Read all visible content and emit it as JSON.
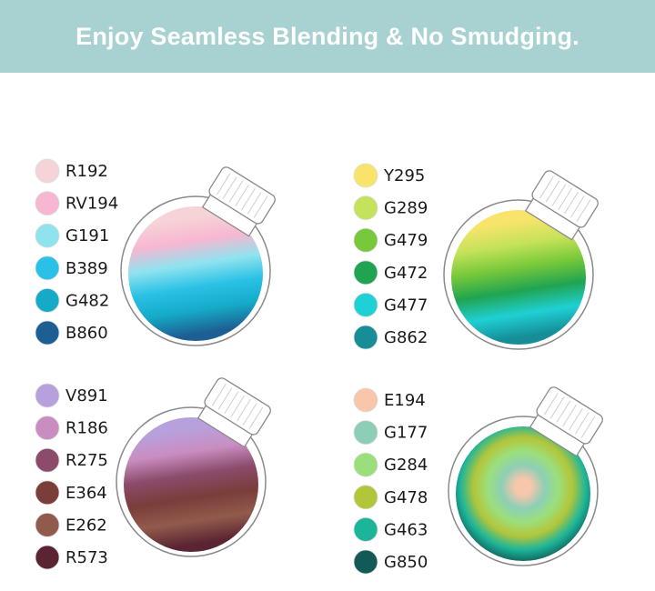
{
  "header": {
    "title": "Enjoy Seamless Blending & No Smudging."
  },
  "panels": [
    {
      "swatches": [
        {
          "code": "R192",
          "color": "#f6d3d6"
        },
        {
          "code": "RV194",
          "color": "#f7b7d2"
        },
        {
          "code": "G191",
          "color": "#8fe3ef"
        },
        {
          "code": "B389",
          "color": "#2bc1e6"
        },
        {
          "code": "G482",
          "color": "#15aac7"
        },
        {
          "code": "B860",
          "color": "#1d5f93"
        }
      ]
    },
    {
      "swatches": [
        {
          "code": "Y295",
          "color": "#f8e46a"
        },
        {
          "code": "G289",
          "color": "#c4e25a"
        },
        {
          "code": "G479",
          "color": "#77c83a"
        },
        {
          "code": "G472",
          "color": "#20a451"
        },
        {
          "code": "G477",
          "color": "#1fd0d4"
        },
        {
          "code": "G862",
          "color": "#168d97"
        }
      ]
    },
    {
      "swatches": [
        {
          "code": "V891",
          "color": "#b7a1dd"
        },
        {
          "code": "R186",
          "color": "#c98dc0"
        },
        {
          "code": "R275",
          "color": "#8c4b6b"
        },
        {
          "code": "E364",
          "color": "#7a3d3a"
        },
        {
          "code": "E262",
          "color": "#925a4c"
        },
        {
          "code": "R573",
          "color": "#5a2432"
        }
      ]
    },
    {
      "swatches": [
        {
          "code": "E194",
          "color": "#f8c6ab"
        },
        {
          "code": "G177",
          "color": "#8dcfb6"
        },
        {
          "code": "G284",
          "color": "#9bdf7c"
        },
        {
          "code": "G478",
          "color": "#b3c63a"
        },
        {
          "code": "G463",
          "color": "#1cb59a"
        },
        {
          "code": "G850",
          "color": "#125a55"
        }
      ]
    }
  ]
}
